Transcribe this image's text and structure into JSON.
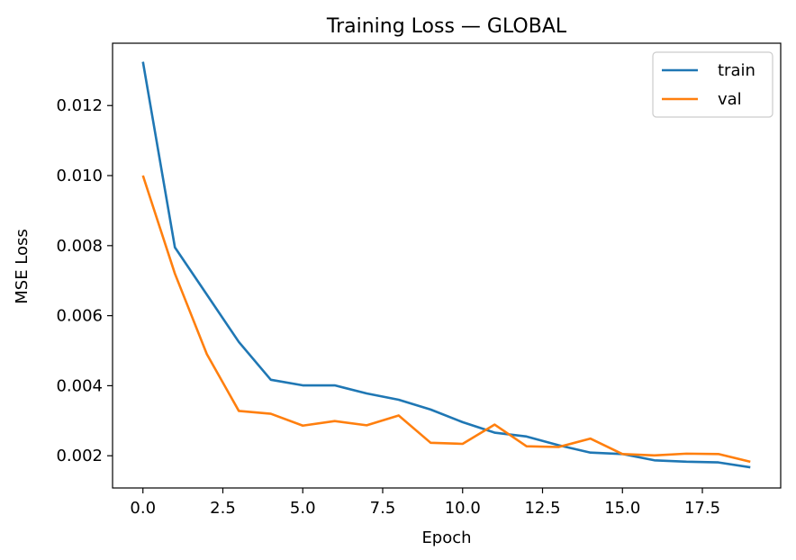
{
  "chart_data": {
    "type": "line",
    "title": "Training Loss — GLOBAL",
    "xlabel": "Epoch",
    "ylabel": "MSE Loss",
    "xlim": [
      -0.95,
      19.95
    ],
    "ylim": [
      0.00108,
      0.01378
    ],
    "xticks": [
      0.0,
      2.5,
      5.0,
      7.5,
      10.0,
      12.5,
      15.0,
      17.5
    ],
    "xtick_labels": [
      "0.0",
      "2.5",
      "5.0",
      "7.5",
      "10.0",
      "12.5",
      "15.0",
      "17.5"
    ],
    "yticks": [
      0.002,
      0.004,
      0.006,
      0.008,
      0.01,
      0.012
    ],
    "ytick_labels": [
      "0.002",
      "0.004",
      "0.006",
      "0.008",
      "0.010",
      "0.012"
    ],
    "grid": false,
    "legend_position": "top-right",
    "x": [
      0,
      1,
      2,
      3,
      4,
      5,
      6,
      7,
      8,
      9,
      10,
      11,
      12,
      13,
      14,
      15,
      16,
      17,
      18,
      19
    ],
    "series": [
      {
        "name": "train",
        "color": "#1f77b4",
        "values": [
          0.01325,
          0.00795,
          0.0066,
          0.00525,
          0.00417,
          0.00401,
          0.00401,
          0.00378,
          0.0036,
          0.00332,
          0.00296,
          0.00266,
          0.00255,
          0.0023,
          0.00209,
          0.00205,
          0.00187,
          0.00183,
          0.00181,
          0.00167
        ]
      },
      {
        "name": "val",
        "color": "#ff7f0e",
        "values": [
          0.01,
          0.0072,
          0.0049,
          0.00328,
          0.0032,
          0.00286,
          0.00299,
          0.00287,
          0.00315,
          0.00237,
          0.00234,
          0.00289,
          0.00227,
          0.00225,
          0.00249,
          0.00205,
          0.00201,
          0.00206,
          0.00205,
          0.00183
        ]
      }
    ]
  }
}
